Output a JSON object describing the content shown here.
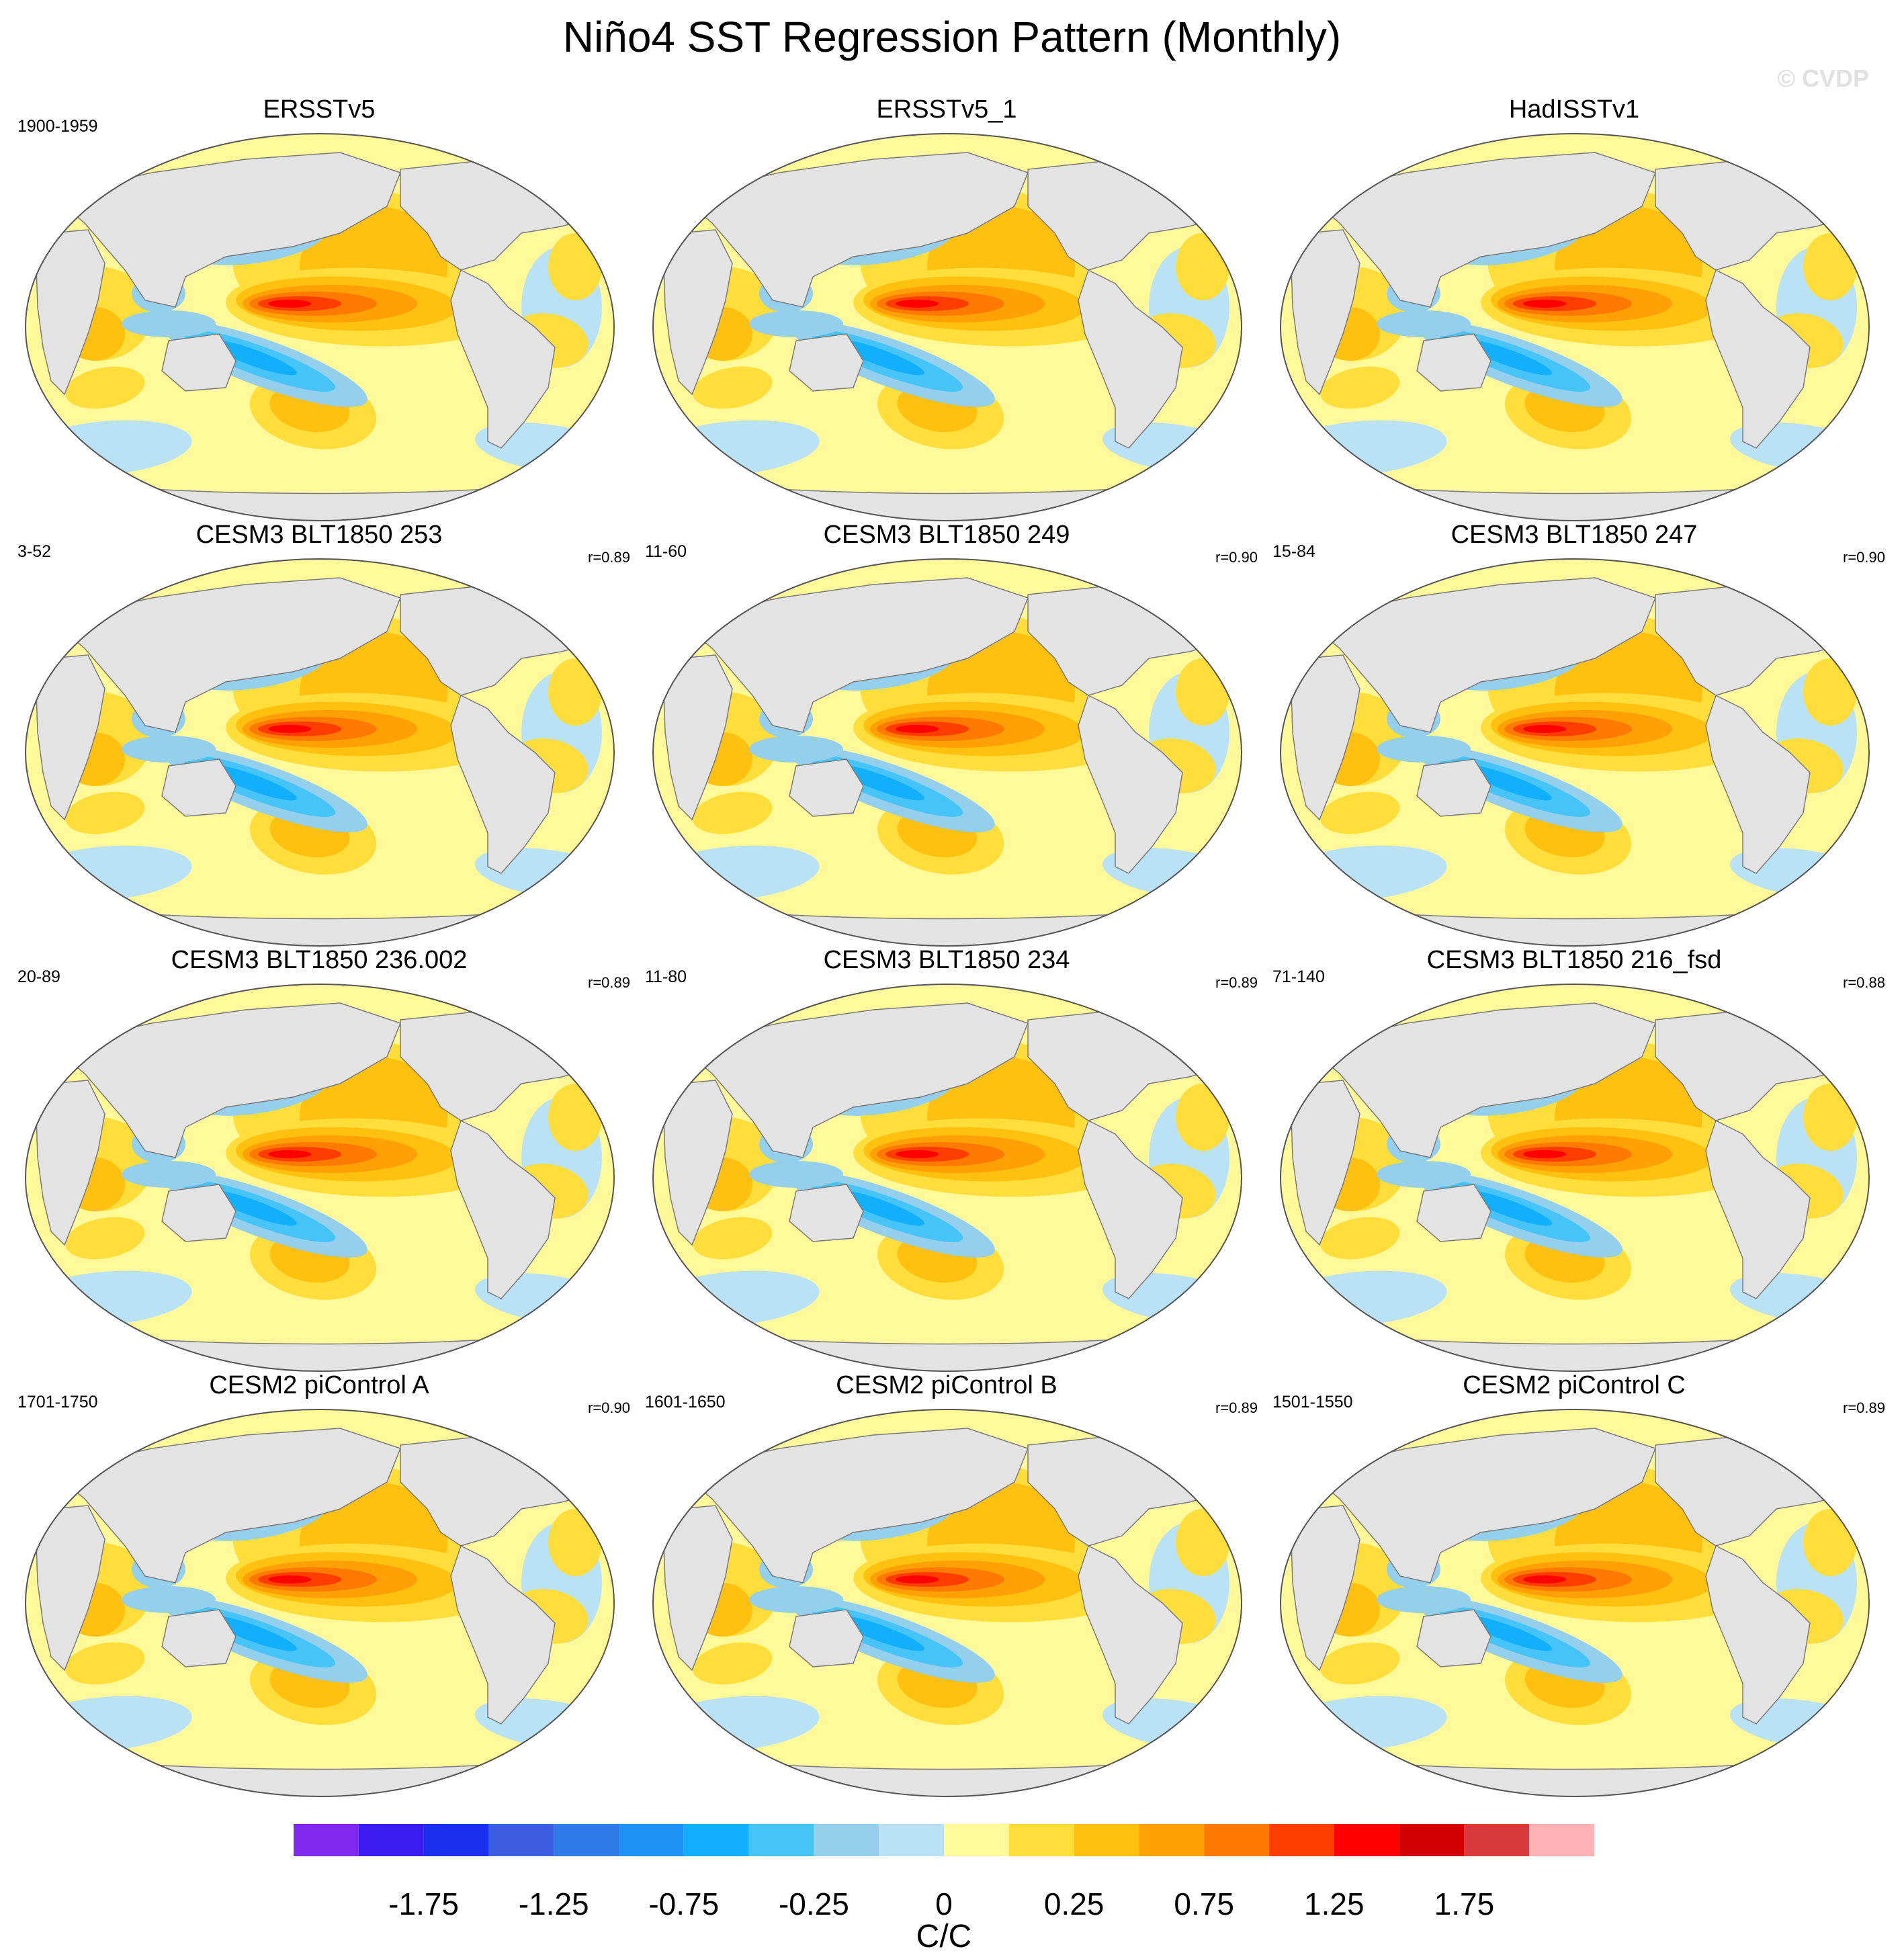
{
  "title": "Niño4 SST Regression Pattern (Monthly)",
  "watermark": "© CVDP",
  "colors": {
    "land": "#e3e3e3",
    "coast": "#7a7a7a",
    "palette": [
      "#7f28ee",
      "#3a1cf2",
      "#1b2ff0",
      "#3b5fe0",
      "#2f7be8",
      "#1e92f5",
      "#12b0fb",
      "#46c4f8",
      "#95cfee",
      "#bae2f7",
      "#fff99a",
      "#ffde3c",
      "#ffc010",
      "#ffa006",
      "#ff7a00",
      "#ff3d00",
      "#ff0000",
      "#d20000",
      "#d83a3a",
      "#ffb2b4"
    ]
  },
  "panels": [
    {
      "title": "ERSSTv5",
      "years": "1900-1959",
      "r": ""
    },
    {
      "title": "ERSSTv5_1",
      "years": "",
      "r": ""
    },
    {
      "title": "HadISSTv1",
      "years": "",
      "r": ""
    },
    {
      "title": "CESM3 BLT1850 253",
      "years": "3-52",
      "r": "r=0.89"
    },
    {
      "title": "CESM3 BLT1850 249",
      "years": "11-60",
      "r": "r=0.90"
    },
    {
      "title": "CESM3 BLT1850 247",
      "years": "15-84",
      "r": "r=0.90"
    },
    {
      "title": "CESM3 BLT1850 236.002",
      "years": "20-89",
      "r": "r=0.89"
    },
    {
      "title": "CESM3 BLT1850 234",
      "years": "11-80",
      "r": "r=0.89"
    },
    {
      "title": "CESM3 BLT1850 216_fsd",
      "years": "71-140",
      "r": "r=0.88"
    },
    {
      "title": "CESM2 piControl A",
      "years": "1701-1750",
      "r": "r=0.90"
    },
    {
      "title": "CESM2 piControl B",
      "years": "1601-1650",
      "r": "r=0.89"
    },
    {
      "title": "CESM2 piControl C",
      "years": "1501-1550",
      "r": "r=0.89"
    }
  ],
  "colorbar": {
    "ticks": [
      "-1.75",
      "-1.25",
      "-0.75",
      "-0.25",
      "0",
      "0.25",
      "0.75",
      "1.25",
      "1.75"
    ],
    "label": "C/C"
  }
}
